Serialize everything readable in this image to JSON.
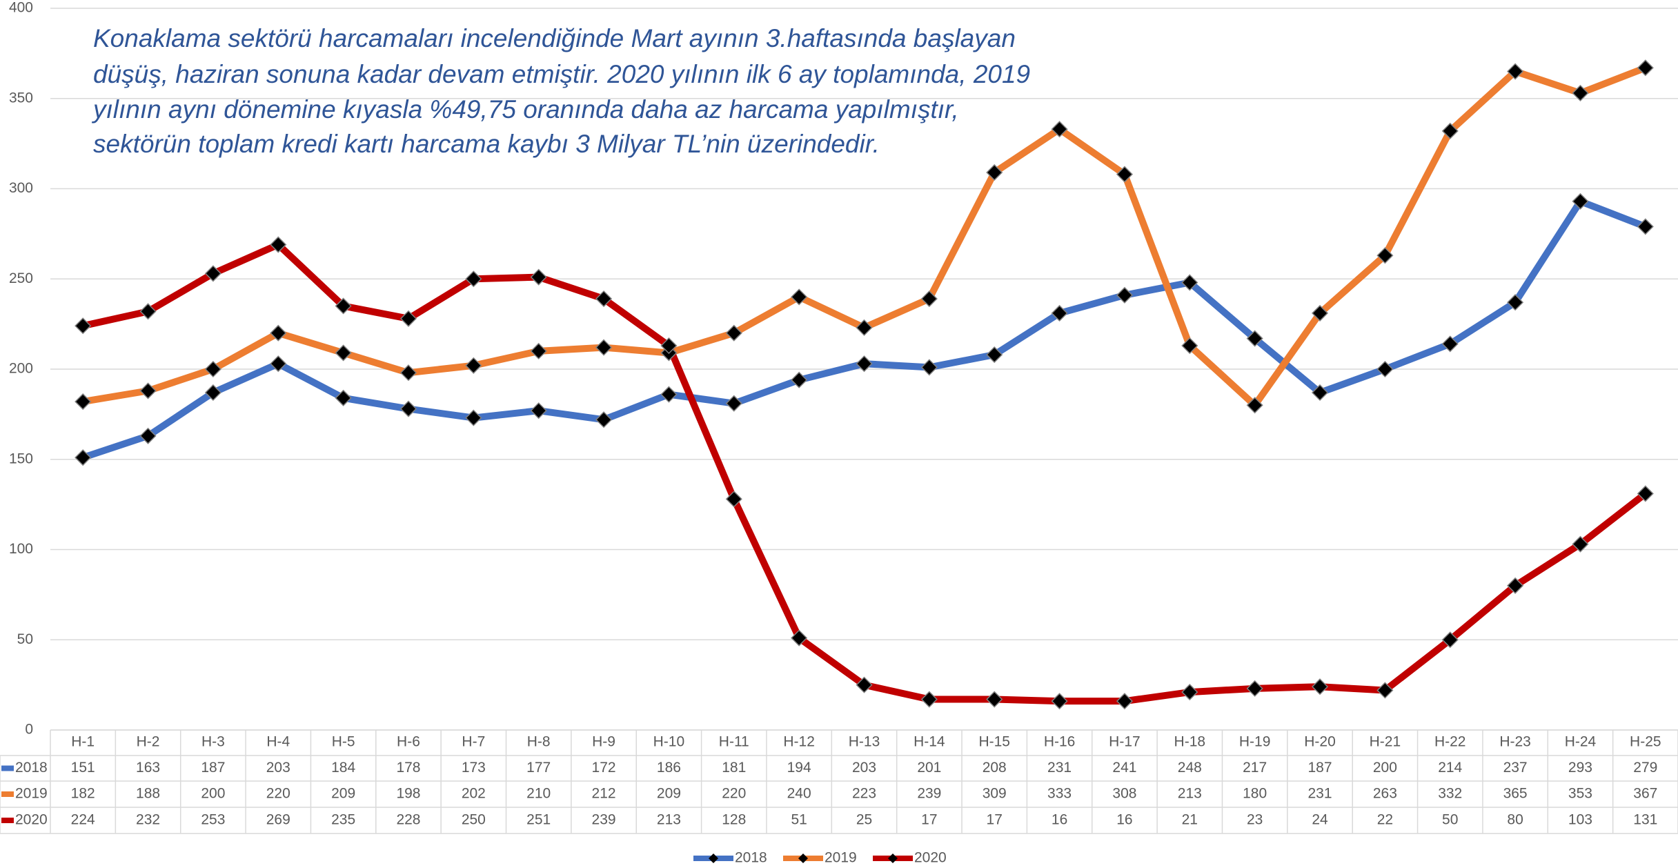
{
  "chart_data": {
    "type": "line",
    "annotation": [
      "Konaklama sektörü harcamaları incelendiğinde Mart ayının 3.haftasında başlayan",
      "düşüş, haziran sonuna kadar devam etmiştir. 2020 yılının ilk 6 ay toplamında, 2019",
      "yılının aynı dönemine kıyasla %49,75 oranında daha az harcama yapılmıştır,",
      "sektörün toplam kredi kartı harcama kaybı 3 Milyar TL’nin üzerindedir."
    ],
    "categories": [
      "H-1",
      "H-2",
      "H-3",
      "H-4",
      "H-5",
      "H-6",
      "H-7",
      "H-8",
      "H-9",
      "H-10",
      "H-11",
      "H-12",
      "H-13",
      "H-14",
      "H-15",
      "H-16",
      "H-17",
      "H-18",
      "H-19",
      "H-20",
      "H-21",
      "H-22",
      "H-23",
      "H-24",
      "H-25"
    ],
    "series": [
      {
        "name": "2018",
        "color": "#4472c4",
        "values": [
          151,
          163,
          187,
          203,
          184,
          178,
          173,
          177,
          172,
          186,
          181,
          194,
          203,
          201,
          208,
          231,
          241,
          248,
          217,
          187,
          200,
          214,
          237,
          293,
          279
        ]
      },
      {
        "name": "2019",
        "color": "#ed7d31",
        "values": [
          182,
          188,
          200,
          220,
          209,
          198,
          202,
          210,
          212,
          209,
          220,
          240,
          223,
          239,
          309,
          333,
          308,
          213,
          180,
          231,
          263,
          332,
          365,
          353,
          367
        ]
      },
      {
        "name": "2020",
        "color": "#c00000",
        "values": [
          224,
          232,
          253,
          269,
          235,
          228,
          250,
          251,
          239,
          213,
          128,
          51,
          25,
          17,
          17,
          16,
          16,
          21,
          23,
          24,
          22,
          50,
          80,
          103,
          131
        ]
      }
    ],
    "ylim": [
      0,
      400
    ],
    "yticks": [
      0,
      50,
      100,
      150,
      200,
      250,
      300,
      350,
      400
    ],
    "grid": true
  }
}
